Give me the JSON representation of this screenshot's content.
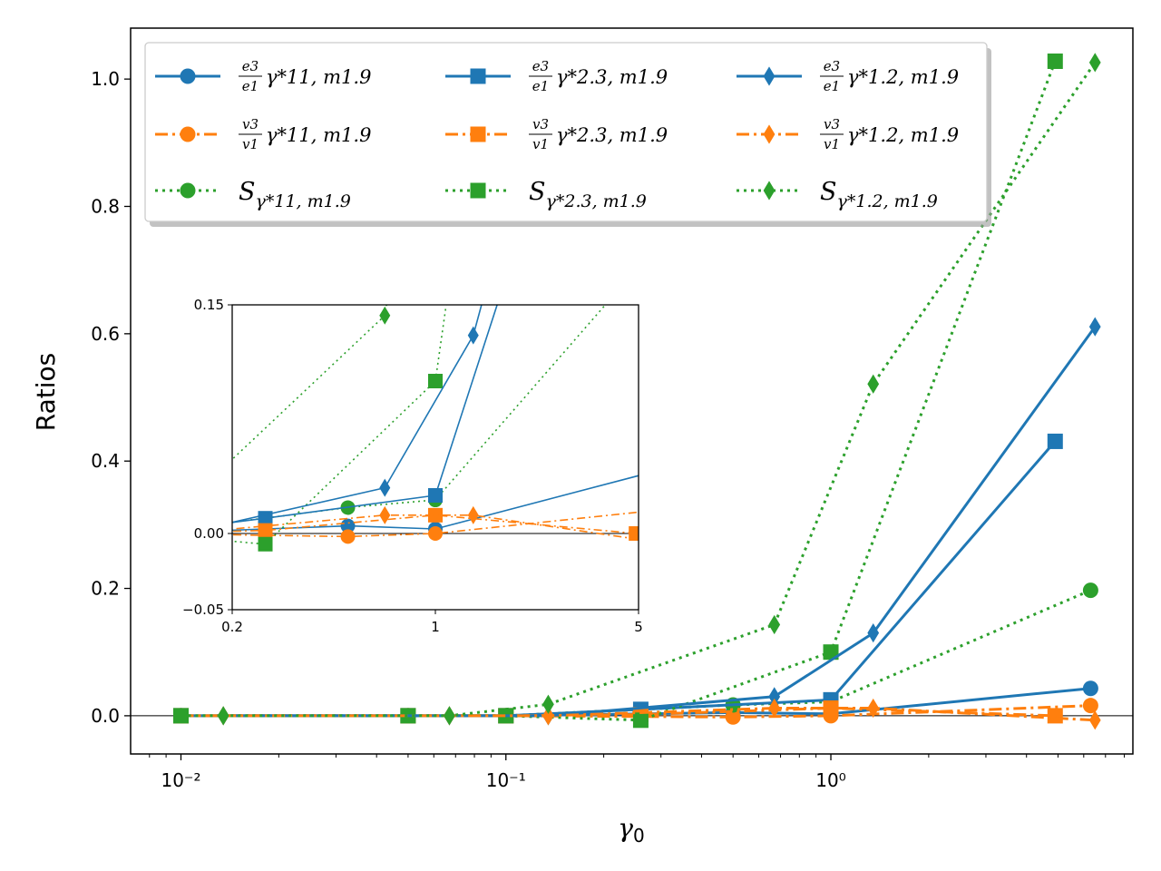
{
  "chart_data": {
    "type": "line",
    "xscale": "log",
    "xlabel": "γ0",
    "ylabel": "Ratios",
    "xlim": [
      0.007,
      8.5
    ],
    "ylim": [
      -0.06,
      1.08
    ],
    "xticks": [
      0.01,
      0.1,
      1
    ],
    "xtick_labels": [
      "10⁻²",
      "10⁻¹",
      "10⁰"
    ],
    "yticks": [
      0.0,
      0.2,
      0.4,
      0.6,
      0.8,
      1.0
    ],
    "ytick_labels": [
      "0.0",
      "0.2",
      "0.4",
      "0.6",
      "0.8",
      "1.0"
    ],
    "colors": {
      "blue": "#1f77b4",
      "orange": "#ff7f0e",
      "green": "#2ca02c"
    },
    "legend": {
      "location": "top-left",
      "columns": 3,
      "entries": [
        {
          "series": 0,
          "num": "e3",
          "den": "e1",
          "tail": "γ*11, m1.9"
        },
        {
          "series": 3,
          "num": "e3",
          "den": "e1",
          "tail": "γ*2.3, m1.9"
        },
        {
          "series": 6,
          "num": "e3",
          "den": "e1",
          "tail": "γ*1.2, m1.9"
        },
        {
          "series": 1,
          "num": "v3",
          "den": "v1",
          "tail": "γ*11, m1.9"
        },
        {
          "series": 4,
          "num": "v3",
          "den": "v1",
          "tail": "γ*2.3, m1.9"
        },
        {
          "series": 7,
          "num": "v3",
          "den": "v1",
          "tail": "γ*1.2, m1.9"
        },
        {
          "series": 2,
          "main": "S",
          "sub": "γ*11, m1.9"
        },
        {
          "series": 5,
          "main": "S",
          "sub": "γ*2.3, m1.9"
        },
        {
          "series": 8,
          "main": "S",
          "sub": "γ*1.2, m1.9"
        }
      ]
    },
    "series": [
      {
        "name": "e3/e1 γ*11, m1.9",
        "color": "blue",
        "style": "solid",
        "marker": "circle",
        "x": [
          0.01,
          0.05,
          0.1,
          0.5,
          1.0,
          6.3
        ],
        "y": [
          0.0,
          0.0,
          0.0,
          0.005,
          0.003,
          0.043
        ]
      },
      {
        "name": "v3/v1 γ*11, m1.9",
        "color": "orange",
        "style": "dashdot",
        "marker": "circle",
        "x": [
          0.01,
          0.05,
          0.1,
          0.5,
          1.0,
          6.3
        ],
        "y": [
          0.0,
          0.0,
          0.0,
          -0.002,
          0.0,
          0.016
        ]
      },
      {
        "name": "S γ*11, m1.9",
        "color": "green",
        "style": "dotted",
        "marker": "circle",
        "x": [
          0.01,
          0.05,
          0.1,
          0.5,
          1.0,
          6.3
        ],
        "y": [
          0.0,
          0.0,
          0.0,
          0.017,
          0.022,
          0.197
        ]
      },
      {
        "name": "e3/e1 γ*2.3, m1.9",
        "color": "blue",
        "style": "solid",
        "marker": "square",
        "x": [
          0.01,
          0.05,
          0.1,
          0.26,
          1.0,
          4.9
        ],
        "y": [
          0.0,
          0.0,
          0.0,
          0.01,
          0.025,
          0.431
        ]
      },
      {
        "name": "v3/v1 γ*2.3, m1.9",
        "color": "orange",
        "style": "dashdot",
        "marker": "square",
        "x": [
          0.01,
          0.05,
          0.1,
          0.26,
          1.0,
          4.9
        ],
        "y": [
          0.0,
          0.0,
          0.0,
          0.002,
          0.012,
          0.0
        ]
      },
      {
        "name": "S γ*2.3, m1.9",
        "color": "green",
        "style": "dotted",
        "marker": "square",
        "x": [
          0.01,
          0.05,
          0.1,
          0.26,
          1.0,
          4.9
        ],
        "y": [
          0.0,
          0.0,
          0.0,
          -0.007,
          0.1,
          1.028
        ]
      },
      {
        "name": "e3/e1 γ*1.2, m1.9",
        "color": "blue",
        "style": "solid",
        "marker": "diamond",
        "x": [
          0.0135,
          0.067,
          0.135,
          0.67,
          1.35,
          6.5
        ],
        "y": [
          0.0,
          0.0,
          0.0,
          0.03,
          0.13,
          0.611
        ]
      },
      {
        "name": "v3/v1 γ*1.2, m1.9",
        "color": "orange",
        "style": "dashdot",
        "marker": "diamond",
        "x": [
          0.0135,
          0.067,
          0.135,
          0.67,
          1.35,
          6.5
        ],
        "y": [
          0.0,
          0.0,
          0.0,
          0.012,
          0.012,
          -0.007
        ]
      },
      {
        "name": "S γ*1.2, m1.9",
        "color": "green",
        "style": "dotted",
        "marker": "diamond",
        "x": [
          0.0135,
          0.067,
          0.135,
          0.67,
          1.35,
          6.5
        ],
        "y": [
          0.0,
          0.0,
          0.018,
          0.143,
          0.521,
          1.026
        ]
      }
    ],
    "inset": {
      "xscale": "log",
      "xlim": [
        0.2,
        5
      ],
      "ylim": [
        -0.05,
        0.15
      ],
      "xticks": [
        0.2,
        1,
        5
      ],
      "xtick_labels": [
        "0.2",
        "1",
        "5"
      ],
      "yticks": [
        -0.05,
        0.0,
        0.15
      ],
      "ytick_labels": [
        "−0.05",
        "0.00",
        "0.15"
      ],
      "location": "center-left",
      "zero_line": true
    }
  }
}
